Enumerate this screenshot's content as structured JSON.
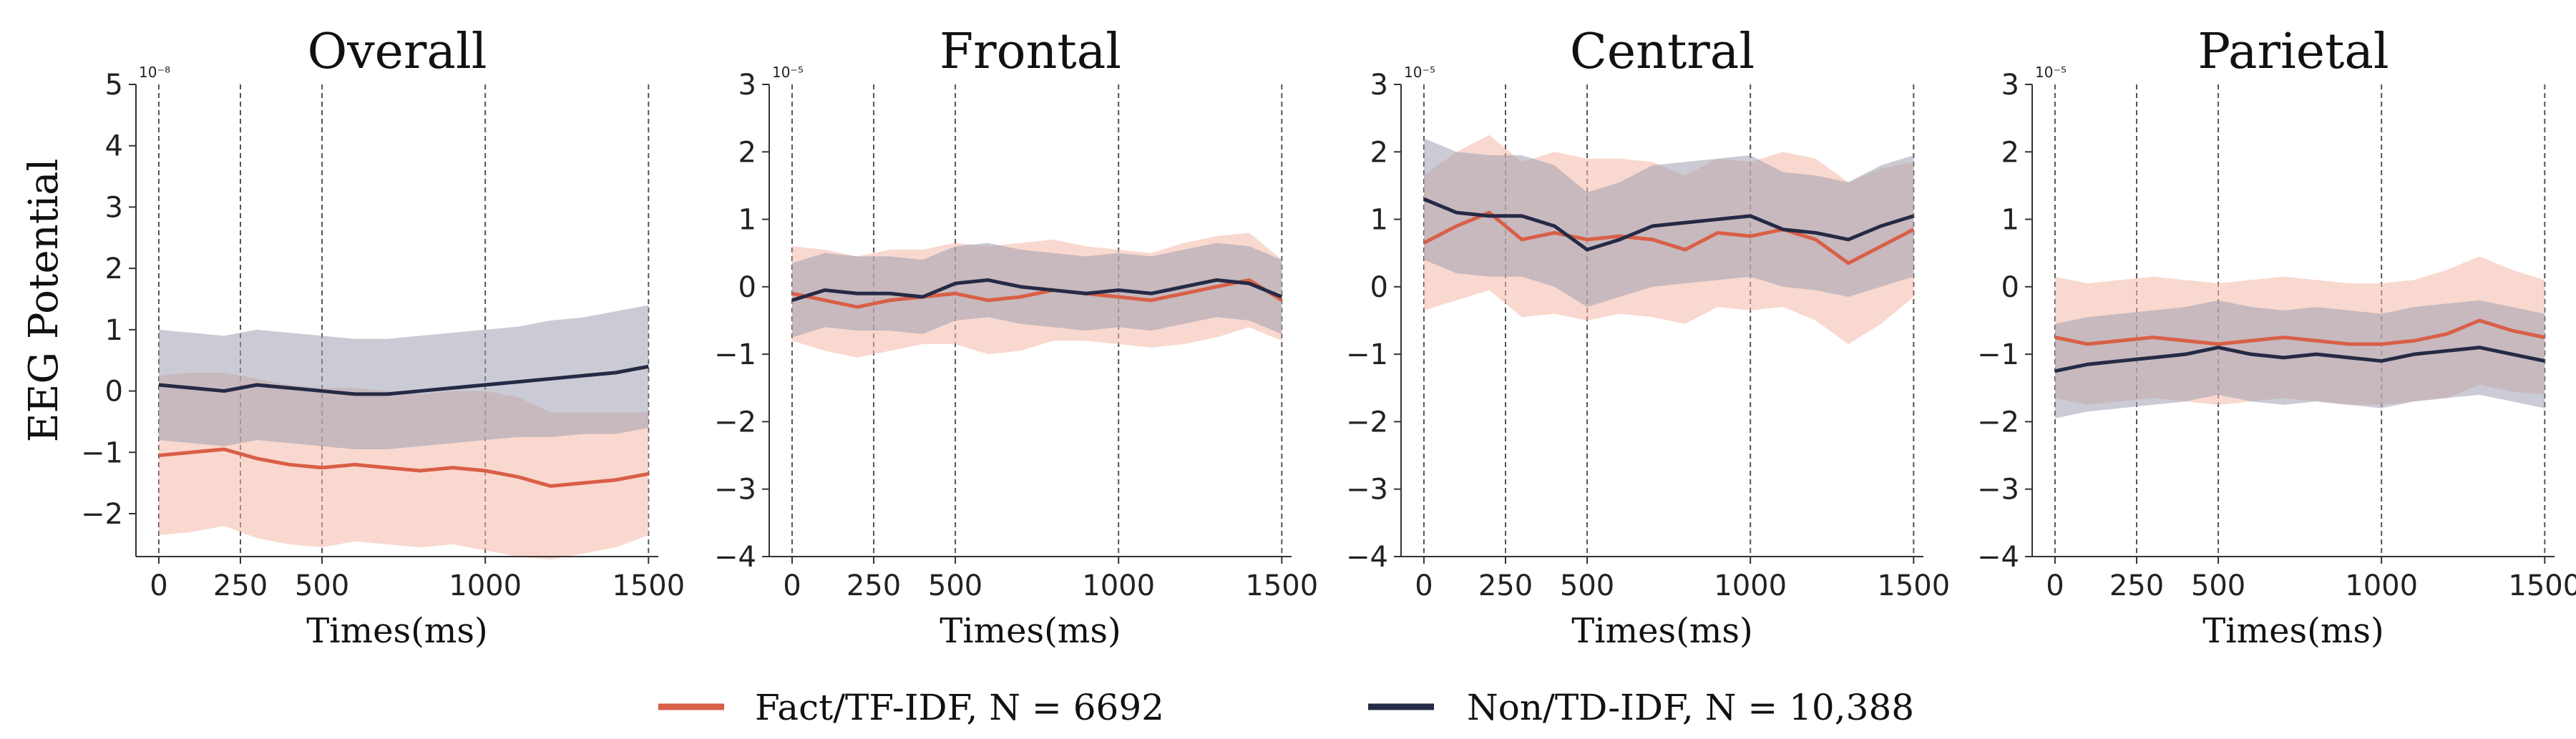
{
  "figure": {
    "ylabel": "EEG Potential"
  },
  "legend": [
    {
      "label": "Fact/TF-IDF, N = 6692",
      "color": "#d95f47",
      "band": "#f4b8a8"
    },
    {
      "label": "Non/TD-IDF, N = 10,388",
      "color": "#252a45",
      "band": "#9fa0b0"
    }
  ],
  "chart_data": [
    {
      "type": "line",
      "title": "Overall",
      "xlabel": "Times(ms)",
      "ylabel": "EEG Potential",
      "scale_label": "10⁻⁸",
      "xlim": [
        -70,
        1530
      ],
      "ylim": [
        -2.7,
        5
      ],
      "xticks": [
        0,
        250,
        500,
        1000,
        1500
      ],
      "yticks": [
        -2,
        -1,
        0,
        1,
        2,
        3,
        4,
        5
      ],
      "vlines": [
        0,
        250,
        500,
        1000,
        1500
      ],
      "x": [
        0,
        100,
        200,
        300,
        400,
        500,
        600,
        700,
        800,
        900,
        1000,
        1100,
        1200,
        1300,
        1400,
        1500
      ],
      "series": [
        {
          "name": "Fact/TF-IDF, N = 6692",
          "color": "#d95f47",
          "values": [
            -1.05,
            -1.0,
            -0.95,
            -1.1,
            -1.2,
            -1.25,
            -1.2,
            -1.25,
            -1.3,
            -1.25,
            -1.3,
            -1.4,
            -1.55,
            -1.5,
            -1.45,
            -1.35
          ],
          "sd": [
            1.3,
            1.3,
            1.25,
            1.3,
            1.3,
            1.3,
            1.25,
            1.25,
            1.25,
            1.25,
            1.3,
            1.3,
            1.2,
            1.15,
            1.1,
            1.0
          ]
        },
        {
          "name": "Non/TD-IDF, N = 10,388",
          "color": "#252a45",
          "values": [
            0.1,
            0.05,
            0.0,
            0.1,
            0.05,
            0.0,
            -0.05,
            -0.05,
            0.0,
            0.05,
            0.1,
            0.15,
            0.2,
            0.25,
            0.3,
            0.4
          ],
          "sd": [
            0.9,
            0.9,
            0.9,
            0.9,
            0.9,
            0.9,
            0.9,
            0.9,
            0.9,
            0.9,
            0.9,
            0.9,
            0.95,
            0.95,
            1.0,
            1.0
          ]
        }
      ]
    },
    {
      "type": "line",
      "title": "Frontal",
      "xlabel": "Times(ms)",
      "ylabel": "",
      "scale_label": "10⁻⁵",
      "xlim": [
        -70,
        1530
      ],
      "ylim": [
        -4,
        3
      ],
      "xticks": [
        0,
        250,
        500,
        1000,
        1500
      ],
      "yticks": [
        -4,
        -3,
        -2,
        -1,
        0,
        1,
        2,
        3
      ],
      "vlines": [
        0,
        250,
        500,
        1000,
        1500
      ],
      "x": [
        0,
        100,
        200,
        300,
        400,
        500,
        600,
        700,
        800,
        900,
        1000,
        1100,
        1200,
        1300,
        1400,
        1500
      ],
      "series": [
        {
          "name": "Fact/TF-IDF, N = 6692",
          "color": "#d95f47",
          "values": [
            -0.1,
            -0.2,
            -0.3,
            -0.2,
            -0.15,
            -0.1,
            -0.2,
            -0.15,
            -0.05,
            -0.1,
            -0.15,
            -0.2,
            -0.1,
            0.0,
            0.1,
            -0.2
          ],
          "sd": [
            0.7,
            0.75,
            0.75,
            0.75,
            0.7,
            0.75,
            0.8,
            0.8,
            0.75,
            0.7,
            0.7,
            0.7,
            0.75,
            0.75,
            0.7,
            0.6
          ]
        },
        {
          "name": "Non/TD-IDF, N = 10,388",
          "color": "#252a45",
          "values": [
            -0.2,
            -0.05,
            -0.1,
            -0.1,
            -0.15,
            0.05,
            0.1,
            0.0,
            -0.05,
            -0.1,
            -0.05,
            -0.1,
            0.0,
            0.1,
            0.05,
            -0.15
          ],
          "sd": [
            0.55,
            0.55,
            0.55,
            0.55,
            0.55,
            0.55,
            0.55,
            0.55,
            0.55,
            0.55,
            0.55,
            0.55,
            0.55,
            0.55,
            0.55,
            0.55
          ]
        }
      ]
    },
    {
      "type": "line",
      "title": "Central",
      "xlabel": "Times(ms)",
      "ylabel": "",
      "scale_label": "10⁻⁵",
      "xlim": [
        -70,
        1530
      ],
      "ylim": [
        -4,
        3
      ],
      "xticks": [
        0,
        250,
        500,
        1000,
        1500
      ],
      "yticks": [
        -4,
        -3,
        -2,
        -1,
        0,
        1,
        2,
        3
      ],
      "vlines": [
        0,
        250,
        500,
        1000,
        1500
      ],
      "x": [
        0,
        100,
        200,
        300,
        400,
        500,
        600,
        700,
        800,
        900,
        1000,
        1100,
        1200,
        1300,
        1400,
        1500
      ],
      "series": [
        {
          "name": "Fact/TF-IDF, N = 6692",
          "color": "#d95f47",
          "values": [
            0.65,
            0.9,
            1.1,
            0.7,
            0.8,
            0.7,
            0.75,
            0.7,
            0.55,
            0.8,
            0.75,
            0.85,
            0.7,
            0.35,
            0.6,
            0.85
          ],
          "sd": [
            1.0,
            1.1,
            1.15,
            1.15,
            1.2,
            1.2,
            1.15,
            1.15,
            1.1,
            1.1,
            1.1,
            1.15,
            1.2,
            1.2,
            1.15,
            1.0
          ]
        },
        {
          "name": "Non/TD-IDF, N = 10,388",
          "color": "#252a45",
          "values": [
            1.3,
            1.1,
            1.05,
            1.05,
            0.9,
            0.55,
            0.7,
            0.9,
            0.95,
            1.0,
            1.05,
            0.85,
            0.8,
            0.7,
            0.9,
            1.05
          ],
          "sd": [
            0.9,
            0.9,
            0.9,
            0.9,
            0.9,
            0.85,
            0.85,
            0.9,
            0.9,
            0.9,
            0.9,
            0.85,
            0.85,
            0.85,
            0.9,
            0.9
          ]
        }
      ]
    },
    {
      "type": "line",
      "title": "Parietal",
      "xlabel": "Times(ms)",
      "ylabel": "",
      "scale_label": "10⁻⁵",
      "xlim": [
        -70,
        1530
      ],
      "ylim": [
        -4,
        3
      ],
      "xticks": [
        0,
        250,
        500,
        1000,
        1500
      ],
      "yticks": [
        -4,
        -3,
        -2,
        -1,
        0,
        1,
        2,
        3
      ],
      "vlines": [
        0,
        250,
        500,
        1000,
        1500
      ],
      "x": [
        0,
        100,
        200,
        300,
        400,
        500,
        600,
        700,
        800,
        900,
        1000,
        1100,
        1200,
        1300,
        1400,
        1500
      ],
      "series": [
        {
          "name": "Fact/TF-IDF, N = 6692",
          "color": "#d95f47",
          "values": [
            -0.75,
            -0.85,
            -0.8,
            -0.75,
            -0.8,
            -0.85,
            -0.8,
            -0.75,
            -0.8,
            -0.85,
            -0.85,
            -0.8,
            -0.7,
            -0.5,
            -0.65,
            -0.75
          ],
          "sd": [
            0.9,
            0.9,
            0.9,
            0.9,
            0.9,
            0.9,
            0.9,
            0.9,
            0.9,
            0.9,
            0.9,
            0.9,
            0.95,
            0.95,
            0.9,
            0.85
          ]
        },
        {
          "name": "Non/TD-IDF, N = 10,388",
          "color": "#252a45",
          "values": [
            -1.25,
            -1.15,
            -1.1,
            -1.05,
            -1.0,
            -0.9,
            -1.0,
            -1.05,
            -1.0,
            -1.05,
            -1.1,
            -1.0,
            -0.95,
            -0.9,
            -1.0,
            -1.1
          ],
          "sd": [
            0.7,
            0.7,
            0.7,
            0.7,
            0.7,
            0.7,
            0.7,
            0.7,
            0.7,
            0.7,
            0.7,
            0.7,
            0.7,
            0.7,
            0.7,
            0.7
          ]
        }
      ]
    }
  ]
}
